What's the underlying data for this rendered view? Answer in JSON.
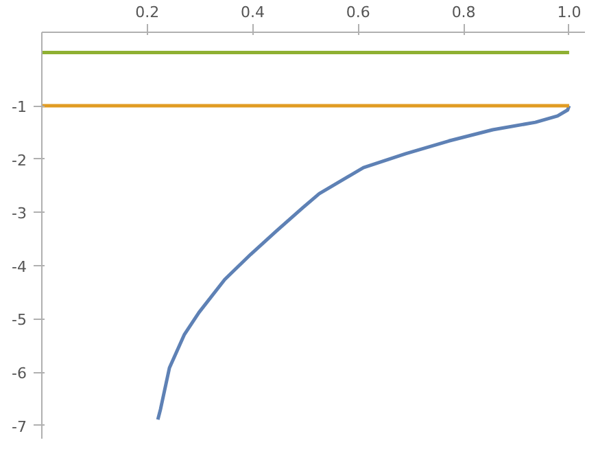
{
  "chart_data": {
    "type": "line",
    "xlim": [
      0,
      1.03
    ],
    "ylim": [
      -7.25,
      0.38
    ],
    "xticks": [
      0.2,
      0.4,
      0.6,
      0.8,
      {
        "value": 1.0,
        "label": "1.0"
      }
    ],
    "yticks": [
      -1,
      -2,
      -3,
      -4,
      -5,
      -6,
      -7
    ],
    "grid": false,
    "marker": "none",
    "line_style": "solid",
    "series": [
      {
        "color": "#5e81b5",
        "x": [
          0.22,
          0.225,
          0.242,
          0.27,
          0.298,
          0.347,
          0.396,
          0.445,
          0.494,
          0.526,
          0.61,
          0.69,
          0.772,
          0.855,
          0.936,
          0.978,
          0.997,
          1.0
        ],
        "values": [
          -6.89,
          -6.7,
          -5.92,
          -5.3,
          -4.88,
          -4.26,
          -3.79,
          -3.35,
          -2.92,
          -2.65,
          -2.16,
          -1.9,
          -1.66,
          -1.45,
          -1.31,
          -1.19,
          -1.08,
          -1.0
        ]
      },
      {
        "color": "#e19c24",
        "x": [
          0,
          1.0
        ],
        "values": [
          -1,
          -1
        ]
      },
      {
        "color": "#8fb032",
        "x": [
          0,
          1.0
        ],
        "values": [
          0,
          0
        ]
      }
    ]
  }
}
